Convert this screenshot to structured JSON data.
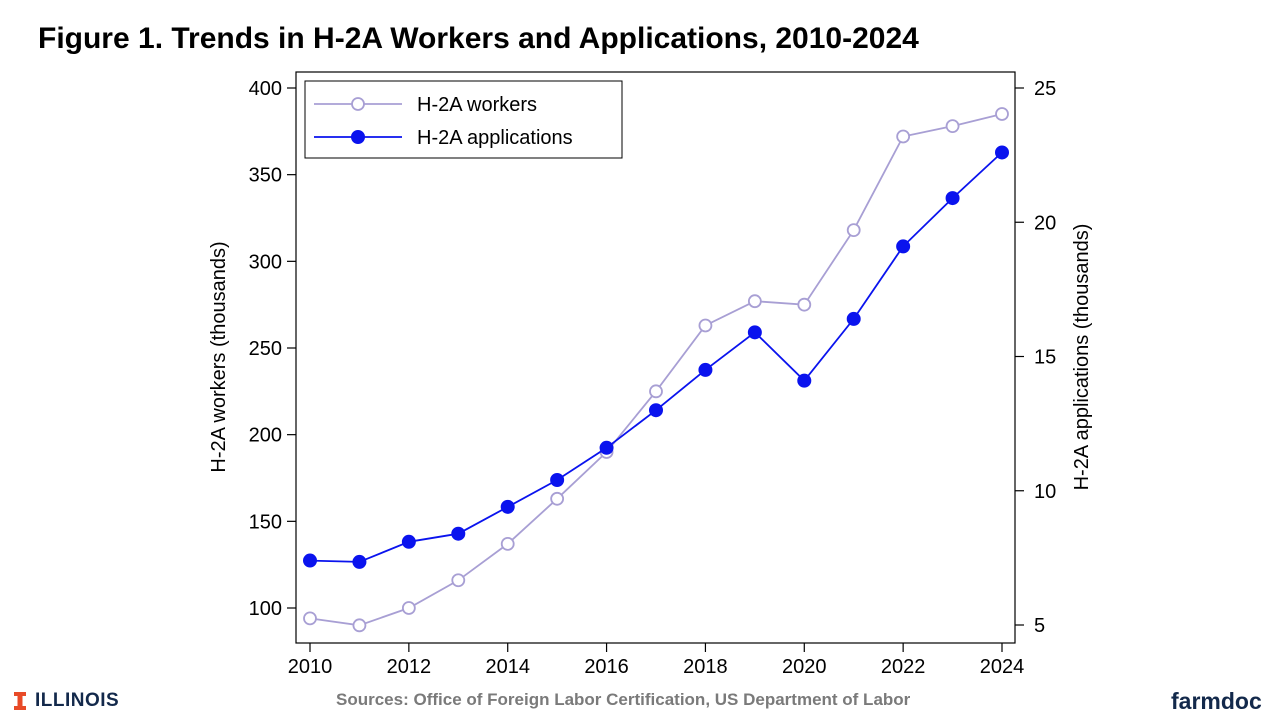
{
  "slide": {
    "title": "Figure 1. Trends in H-2A Workers and Applications, 2010-2024",
    "sources": "Sources: Office of Foreign Labor Certification, US Department of Labor",
    "logo_text": "ILLINOIS",
    "brand": "farmdoc"
  },
  "colors": {
    "workers": "#a89fd4",
    "applications": "#0a13ee",
    "illinois_orange": "#e84a27",
    "illinois_navy": "#13294b"
  },
  "chart_data": {
    "type": "line",
    "title": "Figure 1. Trends in H-2A Workers and Applications, 2010-2024",
    "x": [
      2010,
      2011,
      2012,
      2013,
      2014,
      2015,
      2016,
      2017,
      2018,
      2019,
      2020,
      2021,
      2022,
      2023,
      2024
    ],
    "xlim": [
      2010,
      2024
    ],
    "xticks": [
      2010,
      2012,
      2014,
      2016,
      2018,
      2020,
      2022,
      2024
    ],
    "ylabel_left": "H-2A workers (thousands)",
    "ylabel_right": "H-2A applications (thousands)",
    "ylim_left": [
      90,
      400
    ],
    "yticks_left": [
      100,
      150,
      200,
      250,
      300,
      350,
      400
    ],
    "ylim_right": [
      5,
      25
    ],
    "yticks_right": [
      5,
      10,
      15,
      20,
      25
    ],
    "grid": false,
    "legend_position": "top-left",
    "series": [
      {
        "name": "H-2A workers",
        "axis": "left",
        "marker": "hollow-circle",
        "color": "#a89fd4",
        "values": [
          94,
          90,
          100,
          116,
          137,
          163,
          190,
          225,
          263,
          277,
          275,
          318,
          372,
          378,
          385
        ]
      },
      {
        "name": "H-2A applications",
        "axis": "right",
        "marker": "filled-circle",
        "color": "#0a13ee",
        "values": [
          7.4,
          7.35,
          8.1,
          8.4,
          9.4,
          10.4,
          11.6,
          13.0,
          14.5,
          15.9,
          14.1,
          16.4,
          19.1,
          20.9,
          22.6
        ]
      }
    ]
  }
}
